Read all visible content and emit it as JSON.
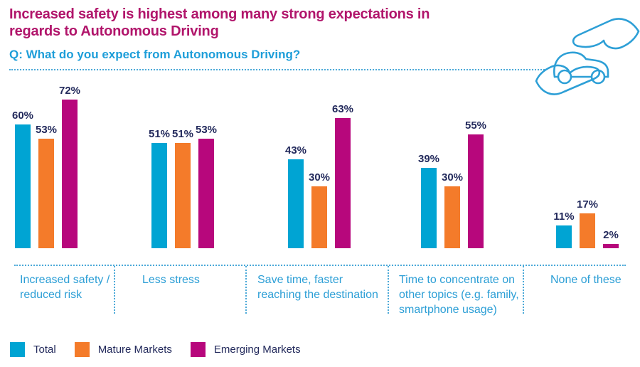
{
  "header": {
    "title": "Increased safety is highest among many strong expectations in regards to Autonomous Driving",
    "subtitle": "Q: What do you expect from Autonomous Driving?"
  },
  "icons": {
    "header_icon": "hands-protecting-car"
  },
  "colors": {
    "title_text": "#B1156B",
    "subtitle_text": "#1E9ED9",
    "category_text": "#2D9FD6",
    "value_text": "#232A5C",
    "dotted_line": "#4BA9D8",
    "total": "#00A4D3",
    "mature_markets": "#F47B2A",
    "emerging_markets": "#B7077C"
  },
  "chart_data": {
    "type": "bar",
    "title": "Increased safety is highest among many strong expectations in regards to Autonomous Driving",
    "subtitle": "Q: What do you expect from Autonomous Driving?",
    "categories": [
      "Increased safety / reduced risk",
      "Less stress",
      "Save time, faster reaching the destination",
      "Time to concentrate on other topics (e.g. family, smartphone usage)",
      "None of these"
    ],
    "series": [
      {
        "name": "Total",
        "color": "#00A4D3",
        "values": [
          60,
          51,
          43,
          39,
          11
        ]
      },
      {
        "name": "Mature Markets",
        "color": "#F47B2A",
        "values": [
          53,
          51,
          30,
          30,
          17
        ]
      },
      {
        "name": "Emerging Markets",
        "color": "#B7077C",
        "values": [
          72,
          53,
          63,
          55,
          2
        ]
      }
    ],
    "value_suffix": "%",
    "xlabel": "",
    "ylabel": "",
    "ylim": [
      0,
      80
    ],
    "grid": false,
    "data_labels": true,
    "legend_position": "bottom-left"
  }
}
